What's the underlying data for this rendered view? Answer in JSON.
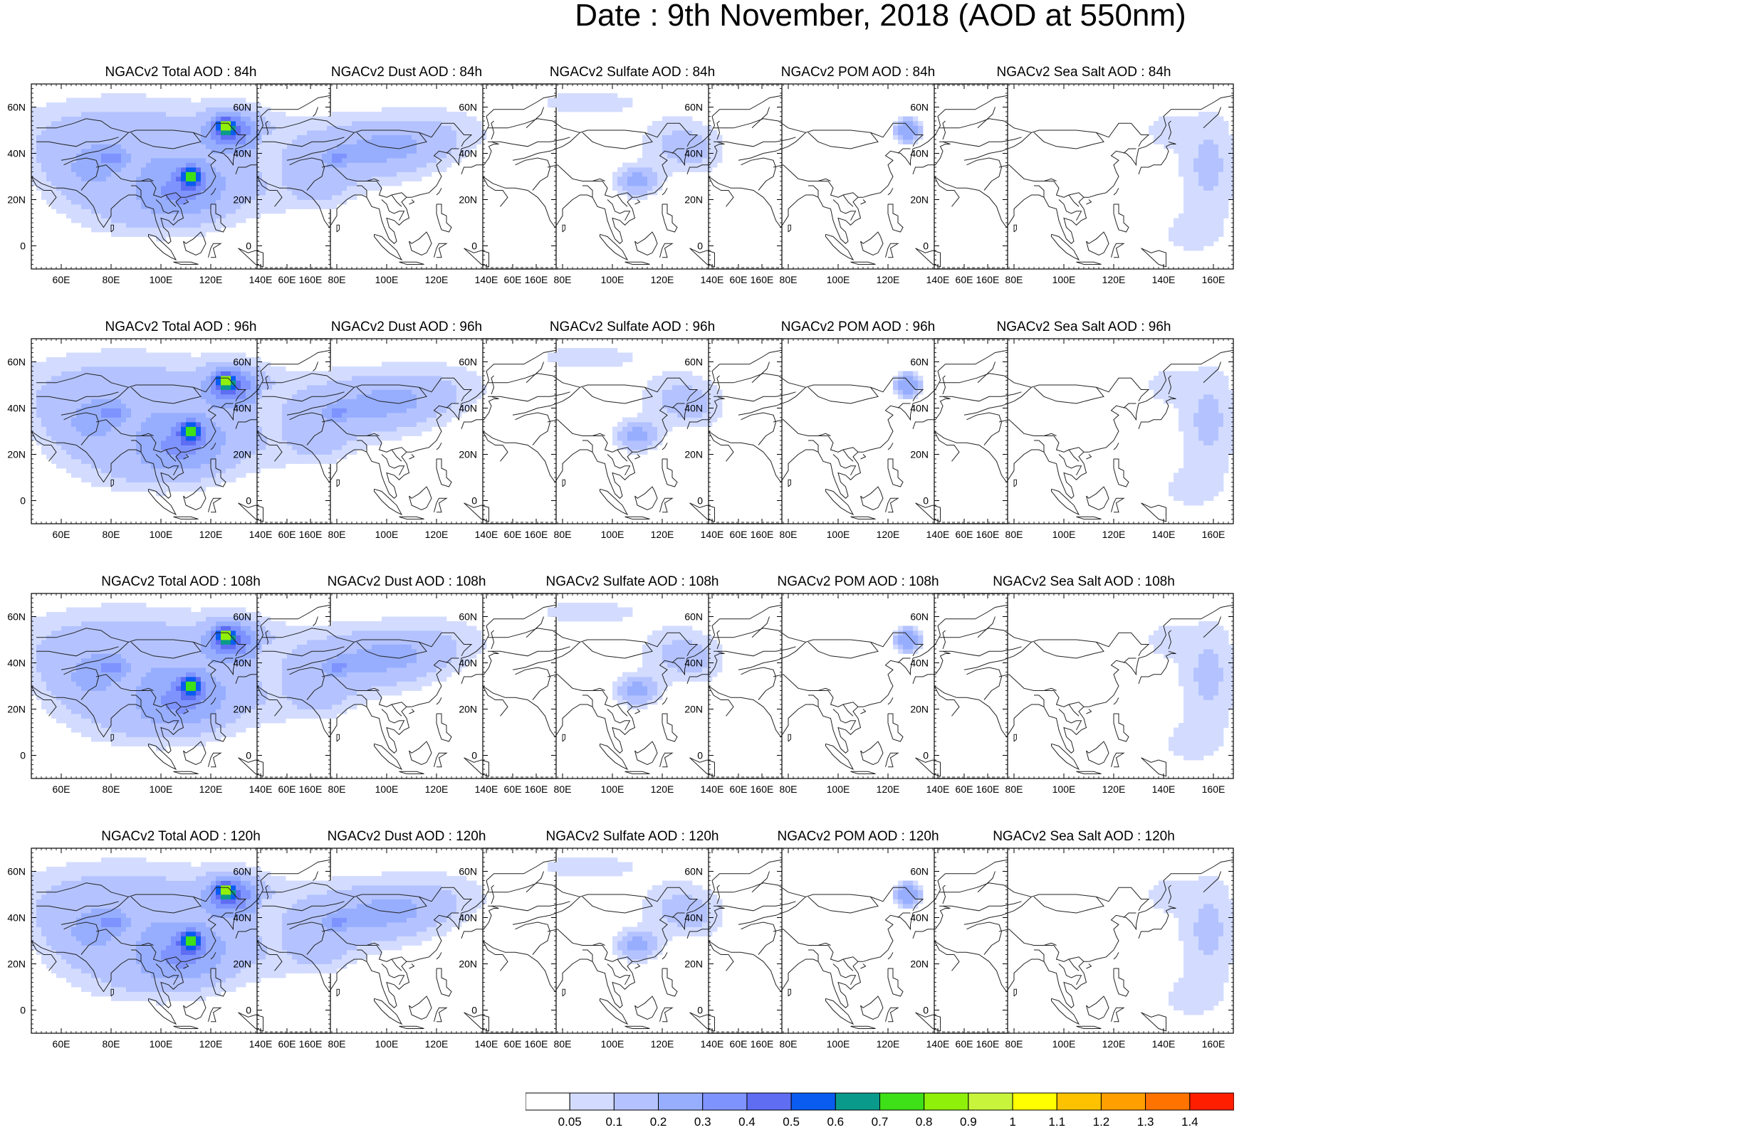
{
  "title": "Date : 9th November, 2018 (AOD at 550nm)",
  "map": {
    "lon_range": [
      48,
      168
    ],
    "lat_range": [
      -10,
      70
    ],
    "lon_ticks": [
      "60E",
      "80E",
      "100E",
      "120E",
      "140E",
      "160E"
    ],
    "lon_tick_values": [
      60,
      80,
      100,
      120,
      140,
      160
    ],
    "lat_ticks": [
      "60N",
      "40N",
      "20N",
      "0"
    ],
    "lat_tick_values": [
      60,
      40,
      20,
      0
    ]
  },
  "panels": [
    {
      "title": "NGACv2 Total AOD : 84h",
      "species": "total",
      "hour": 84
    },
    {
      "title": "NGACv2 Dust AOD : 84h",
      "species": "dust",
      "hour": 84
    },
    {
      "title": "NGACv2 Sulfate AOD : 84h",
      "species": "sulfate",
      "hour": 84
    },
    {
      "title": "NGACv2 POM AOD : 84h",
      "species": "pom",
      "hour": 84
    },
    {
      "title": "NGACv2 Sea Salt AOD : 84h",
      "species": "seasalt",
      "hour": 84
    },
    {
      "title": "NGACv2 Total AOD : 96h",
      "species": "total",
      "hour": 96
    },
    {
      "title": "NGACv2 Dust AOD : 96h",
      "species": "dust",
      "hour": 96
    },
    {
      "title": "NGACv2 Sulfate AOD : 96h",
      "species": "sulfate",
      "hour": 96
    },
    {
      "title": "NGACv2 POM AOD : 96h",
      "species": "pom",
      "hour": 96
    },
    {
      "title": "NGACv2 Sea Salt AOD : 96h",
      "species": "seasalt",
      "hour": 96
    },
    {
      "title": "NGACv2 Total AOD : 108h",
      "species": "total",
      "hour": 108
    },
    {
      "title": "NGACv2 Dust AOD : 108h",
      "species": "dust",
      "hour": 108
    },
    {
      "title": "NGACv2 Sulfate AOD : 108h",
      "species": "sulfate",
      "hour": 108
    },
    {
      "title": "NGACv2 POM AOD : 108h",
      "species": "pom",
      "hour": 108
    },
    {
      "title": "NGACv2 Sea Salt AOD : 108h",
      "species": "seasalt",
      "hour": 108
    },
    {
      "title": "NGACv2 Total AOD : 120h",
      "species": "total",
      "hour": 120
    },
    {
      "title": "NGACv2 Dust AOD : 120h",
      "species": "dust",
      "hour": 120
    },
    {
      "title": "NGACv2 Sulfate AOD : 120h",
      "species": "sulfate",
      "hour": 120
    },
    {
      "title": "NGACv2 POM AOD : 120h",
      "species": "pom",
      "hour": 120
    },
    {
      "title": "NGACv2 Sea Salt  AOD : 120h",
      "species": "seasalt",
      "hour": 120
    }
  ],
  "colorbar": {
    "labels": [
      "0.05",
      "0.1",
      "0.2",
      "0.3",
      "0.4",
      "0.5",
      "0.6",
      "0.7",
      "0.8",
      "0.9",
      "1",
      "1.1",
      "1.2",
      "1.3",
      "1.4"
    ],
    "colors": [
      "#ffffff",
      "#d3dcff",
      "#b4c3ff",
      "#97aeff",
      "#7f93ff",
      "#5e6df2",
      "#0a5cf0",
      "#0a9a8c",
      "#3ee018",
      "#8ff00a",
      "#c8f53c",
      "#ffff00",
      "#ffc200",
      "#ffa000",
      "#ff7300",
      "#ff1e00"
    ]
  }
}
